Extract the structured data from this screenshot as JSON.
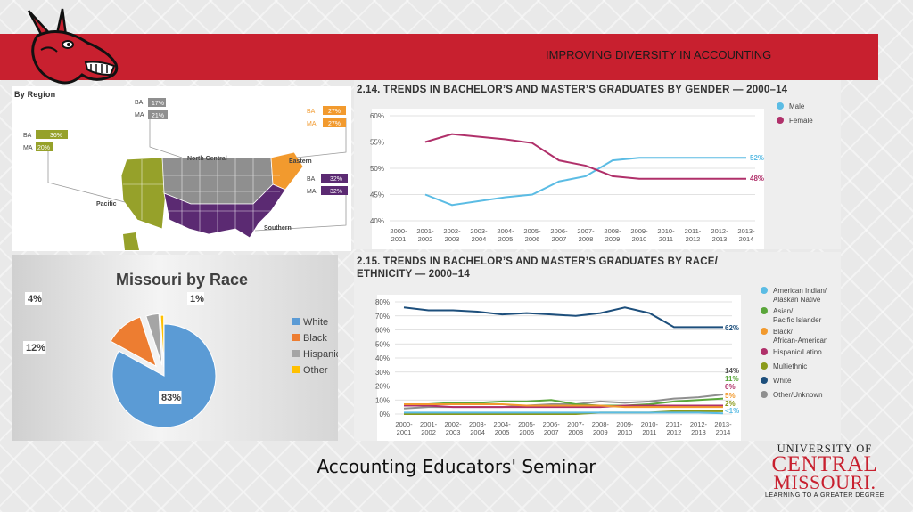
{
  "header": {
    "title": "IMPROVING DIVERSITY IN ACCOUNTING"
  },
  "region_map": {
    "title": "By Region",
    "regions": [
      {
        "name": "North Central",
        "ba": "17%",
        "ma": "21%",
        "color": "#8f8f8f"
      },
      {
        "name": "Eastern",
        "ba": "27%",
        "ma": "27%",
        "color": "#f29a2e"
      },
      {
        "name": "Pacific",
        "ba": "36%",
        "ma": "20%",
        "color": "#96a12a"
      },
      {
        "name": "Southern",
        "ba": "32%",
        "ma": "32%",
        "color": "#5b2a72"
      }
    ],
    "ba_label": "BA",
    "ma_label": "MA"
  },
  "gender_chart": {
    "title": "2.14. TRENDS IN BACHELOR’S AND MASTER’S GRADUATES BY GENDER — 2000–14",
    "legend": [
      {
        "name": "Male",
        "color": "#5bbce4"
      },
      {
        "name": "Female",
        "color": "#b0306a"
      }
    ],
    "end_labels": [
      "52%",
      "48%"
    ]
  },
  "race_chart": {
    "title_line1": "2.15. TRENDS IN BACHELOR’S AND MASTER’S GRADUATES BY RACE/",
    "title_line2": "ETHNICITY — 2000–14",
    "legend": [
      {
        "name": "American Indian/",
        "name2": "Alaskan Native",
        "color": "#5bbce4"
      },
      {
        "name": "Asian/",
        "name2": "Pacific Islander",
        "color": "#5aa63b"
      },
      {
        "name": "Black/",
        "name2": "African-American",
        "color": "#f29a2e"
      },
      {
        "name": "Hispanic/Latino",
        "name2": "",
        "color": "#b0306a"
      },
      {
        "name": "Multiethnic",
        "name2": "",
        "color": "#8a9a1a"
      },
      {
        "name": "White",
        "name2": "",
        "color": "#1d4f7c"
      },
      {
        "name": "Other/Unknown",
        "name2": "",
        "color": "#8f8f8f"
      }
    ],
    "end_labels": [
      {
        "text": "62%",
        "color": "#1d4f7c"
      },
      {
        "text": "14%",
        "color": "#555555"
      },
      {
        "text": "11%",
        "color": "#5aa63b"
      },
      {
        "text": "6%",
        "color": "#b0306a"
      },
      {
        "text": "5%",
        "color": "#f29a2e"
      },
      {
        "text": "2%",
        "color": "#8a9a1a"
      },
      {
        "text": "<1%",
        "color": "#5bbce4"
      }
    ]
  },
  "pie": {
    "title": "Missouri by Race",
    "legend": [
      {
        "name": "White",
        "color": "#5b9bd5"
      },
      {
        "name": "Black",
        "color": "#ed7d31"
      },
      {
        "name": "Hispanic",
        "color": "#a5a5a5"
      },
      {
        "name": "Other",
        "color": "#ffc000"
      }
    ],
    "labels": {
      "white": "83%",
      "black": "12%",
      "hispanic": "4%",
      "other": "1%"
    }
  },
  "footer": {
    "title": "Accounting Educators' Seminar",
    "ucm_line1": "UNIVERSITY OF",
    "ucm_line2": "CENTRAL",
    "ucm_line3": "MISSOURI.",
    "ucm_tagline": "LEARNING TO A GREATER DEGREE"
  },
  "chart_data": [
    {
      "type": "line",
      "title": "2.14. TRENDS IN BACHELOR’S AND MASTER’S GRADUATES BY GENDER — 2000–14",
      "categories": [
        "2000-2001",
        "2001-2002",
        "2002-2003",
        "2003-2004",
        "2004-2005",
        "2005-2006",
        "2006-2007",
        "2007-2008",
        "2008-2009",
        "2009-2010",
        "2010-2011",
        "2011-2012",
        "2012-2013",
        "2013-2014"
      ],
      "yticks": [
        "40%",
        "45%",
        "50%",
        "55%",
        "60%"
      ],
      "ylim": [
        40,
        60
      ],
      "legend_position": "top-right",
      "series": [
        {
          "name": "Male",
          "values": [
            null,
            45,
            43,
            null,
            44.5,
            45,
            47.5,
            48.5,
            51.5,
            52,
            null,
            null,
            null,
            52
          ]
        },
        {
          "name": "Female",
          "values": [
            null,
            55,
            56.5,
            null,
            55.5,
            54.8,
            51.5,
            50.5,
            48.5,
            48,
            null,
            null,
            null,
            48
          ]
        }
      ]
    },
    {
      "type": "line",
      "title": "2.15. TRENDS IN BACHELOR’S AND MASTER’S GRADUATES BY RACE/ETHNICITY — 2000–14",
      "categories": [
        "2000-2001",
        "2001-2002",
        "2002-2003",
        "2003-2004",
        "2004-2005",
        "2005-2006",
        "2006-2007",
        "2007-2008",
        "2008-2009",
        "2009-2010",
        "2010-2011",
        "2011-2012",
        "2012-2013",
        "2013-2014"
      ],
      "yticks": [
        "0%",
        "10%",
        "20%",
        "30%",
        "40%",
        "50%",
        "60%",
        "70%",
        "80%"
      ],
      "ylim": [
        0,
        80
      ],
      "legend_position": "right",
      "series": [
        {
          "name": "White",
          "values": [
            76,
            74,
            74,
            73,
            71,
            72,
            71,
            70,
            72,
            76,
            72,
            62,
            null,
            62
          ]
        },
        {
          "name": "Other/Unknown",
          "values": [
            4,
            5,
            5,
            5,
            5,
            6,
            7,
            7,
            9,
            8,
            9,
            11,
            12,
            14
          ]
        },
        {
          "name": "Asian/Pacific Islander",
          "values": [
            7,
            7,
            8,
            8,
            9,
            9,
            10,
            7,
            6,
            6,
            7,
            9,
            10,
            11
          ]
        },
        {
          "name": "Hispanic/Latino",
          "values": [
            6,
            6,
            5,
            5,
            5,
            5,
            5,
            5,
            5,
            6,
            6,
            6,
            6,
            6
          ]
        },
        {
          "name": "Black/African-American",
          "values": [
            7,
            7,
            7,
            7,
            7,
            6,
            6,
            6,
            6,
            5,
            5,
            5,
            5,
            5
          ]
        },
        {
          "name": "Multiethnic",
          "values": [
            0,
            0,
            0,
            0,
            0,
            0,
            0,
            0,
            1,
            1,
            1,
            2,
            2,
            2
          ]
        },
        {
          "name": "American Indian/Alaskan Native",
          "values": [
            1,
            1,
            1,
            1,
            1,
            1,
            1,
            1,
            1,
            1,
            1,
            1,
            1,
            0.5
          ]
        }
      ]
    },
    {
      "type": "pie",
      "title": "Missouri by Race",
      "categories": [
        "White",
        "Black",
        "Hispanic",
        "Other"
      ],
      "values": [
        83,
        12,
        4,
        1
      ],
      "legend_position": "right"
    }
  ]
}
